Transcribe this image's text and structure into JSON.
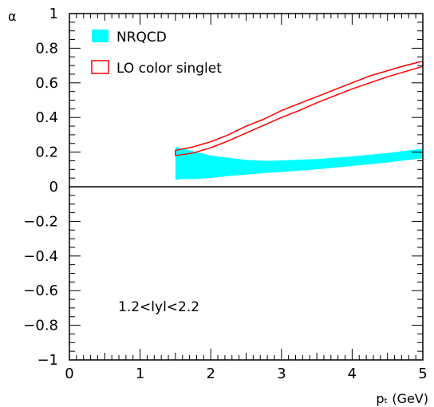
{
  "chart_data": {
    "type": "area",
    "xlabel": "pₜ (GeV)",
    "ylabel": "α",
    "xlim": [
      0,
      5
    ],
    "ylim": [
      -1,
      1
    ],
    "xticks": [
      0,
      1,
      2,
      3,
      4,
      5
    ],
    "xtick_labels": [
      "0",
      "1",
      "2",
      "3",
      "4",
      "5"
    ],
    "yticks": [
      -1,
      -0.8,
      -0.6,
      -0.4,
      -0.2,
      0,
      0.2,
      0.4,
      0.6,
      0.8,
      1
    ],
    "ytick_labels": [
      "−1",
      "−0.8",
      "−0.6",
      "−0.4",
      "−0.2",
      "0",
      "0.2",
      "0.4",
      "0.6",
      "0.8",
      "1"
    ],
    "legend_position": "top-left",
    "annotation": "1.2<lyl<2.2",
    "reference_line_y": 0,
    "series": [
      {
        "name": "NRQCD",
        "style": "band",
        "color": "#00ffff",
        "x": [
          1.5,
          1.6,
          1.8,
          2.0,
          2.2,
          2.5,
          2.8,
          3.0,
          3.5,
          4.0,
          4.5,
          5.0
        ],
        "upper": [
          0.23,
          0.22,
          0.2,
          0.18,
          0.17,
          0.155,
          0.15,
          0.152,
          0.16,
          0.175,
          0.195,
          0.22
        ],
        "lower": [
          0.04,
          0.045,
          0.045,
          0.05,
          0.06,
          0.07,
          0.08,
          0.085,
          0.1,
          0.12,
          0.14,
          0.165
        ]
      },
      {
        "name": "LO color singlet",
        "style": "outline-band",
        "color": "#ff0000",
        "x": [
          1.5,
          1.75,
          2.0,
          2.25,
          2.5,
          2.75,
          3.0,
          3.25,
          3.5,
          3.75,
          4.0,
          4.25,
          4.5,
          4.75,
          5.0
        ],
        "upper": [
          0.21,
          0.23,
          0.26,
          0.3,
          0.35,
          0.39,
          0.44,
          0.48,
          0.52,
          0.56,
          0.6,
          0.64,
          0.67,
          0.7,
          0.725
        ],
        "lower": [
          0.18,
          0.195,
          0.225,
          0.265,
          0.31,
          0.355,
          0.4,
          0.44,
          0.485,
          0.525,
          0.565,
          0.6,
          0.635,
          0.665,
          0.695
        ]
      }
    ]
  }
}
